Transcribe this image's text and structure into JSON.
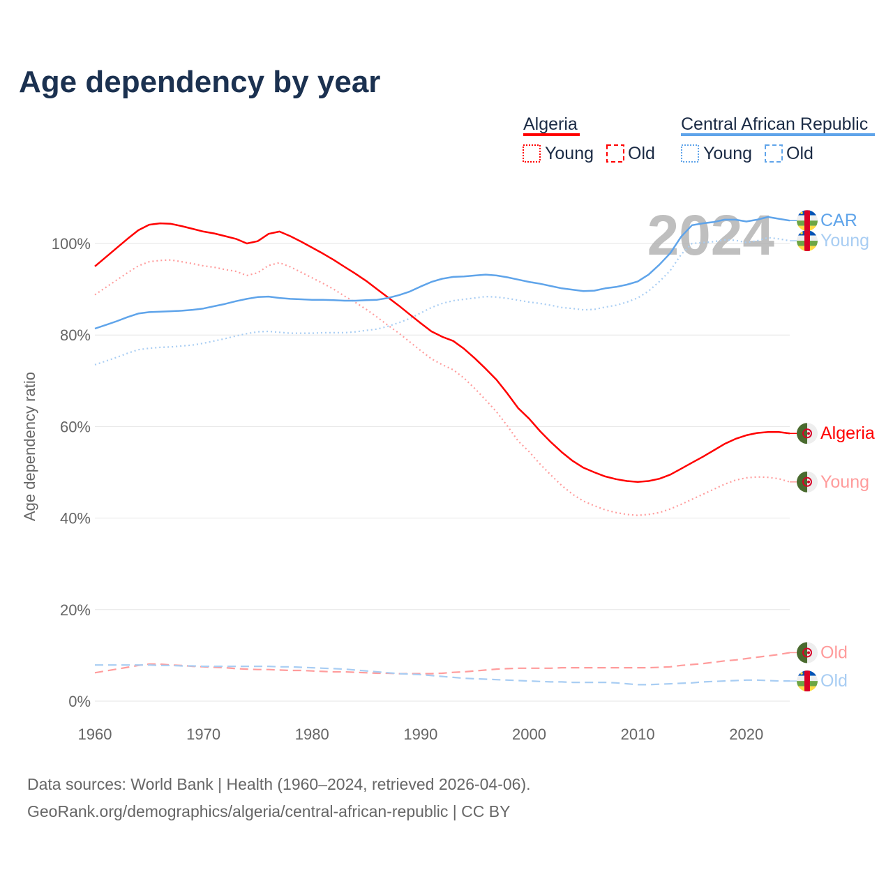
{
  "chart_data": {
    "type": "line",
    "title": "Age dependency by year",
    "xlabel": "",
    "ylabel": "Age dependency ratio",
    "xlim": [
      1960,
      2024
    ],
    "ylim": [
      0,
      110
    ],
    "y_ticks": [
      "0%",
      "20%",
      "40%",
      "60%",
      "80%",
      "100%"
    ],
    "y_tick_values": [
      0,
      20,
      40,
      60,
      80,
      100
    ],
    "x_ticks": [
      "1960",
      "1970",
      "1980",
      "1990",
      "2000",
      "2010",
      "2020"
    ],
    "x_tick_values": [
      1960,
      1970,
      1980,
      1990,
      2000,
      2010,
      2020
    ],
    "grid": true,
    "year_indicator": "2024",
    "x_start": 1960,
    "series": [
      {
        "name": "Algeria",
        "group": "Algeria",
        "kind": "total",
        "end_label": "Algeria",
        "color": "#ff0000",
        "style": "solid",
        "values": [
          95.0,
          97.0,
          99.0,
          101.0,
          102.9,
          104.1,
          104.4,
          104.3,
          103.8,
          103.2,
          102.6,
          102.2,
          101.6,
          101.0,
          100.0,
          100.5,
          102.1,
          102.6,
          101.6,
          100.4,
          99.1,
          97.8,
          96.4,
          94.9,
          93.4,
          91.8,
          90.0,
          88.2,
          86.4,
          84.5,
          82.6,
          80.8,
          79.6,
          78.7,
          77.0,
          74.9,
          72.6,
          70.2,
          67.2,
          64.0,
          61.7,
          59.0,
          56.6,
          54.4,
          52.5,
          51.0,
          50.0,
          49.1,
          48.5,
          48.1,
          47.9,
          48.1,
          48.6,
          49.5,
          50.8,
          52.1,
          53.4,
          54.8,
          56.2,
          57.3,
          58.1,
          58.6,
          58.8,
          58.8,
          58.5
        ]
      },
      {
        "name": "Algeria Young",
        "group": "Algeria",
        "kind": "young",
        "end_label": "Young",
        "color": "#ff9c9c",
        "style": "dotted",
        "values": [
          88.8,
          90.4,
          92.0,
          93.6,
          95.1,
          96.0,
          96.3,
          96.4,
          96.0,
          95.6,
          95.1,
          94.8,
          94.3,
          93.9,
          93.0,
          93.6,
          95.2,
          95.8,
          94.9,
          93.7,
          92.5,
          91.3,
          90.0,
          88.5,
          87.1,
          85.6,
          83.9,
          82.1,
          80.4,
          78.5,
          76.6,
          74.8,
          73.5,
          72.4,
          70.6,
          68.3,
          65.8,
          63.2,
          60.1,
          56.8,
          54.5,
          51.8,
          49.4,
          47.1,
          45.2,
          43.7,
          42.7,
          41.8,
          41.2,
          40.8,
          40.6,
          40.8,
          41.2,
          42.0,
          43.0,
          44.1,
          45.2,
          46.3,
          47.4,
          48.3,
          48.8,
          49.0,
          48.9,
          48.6,
          47.9
        ]
      },
      {
        "name": "Algeria Old",
        "group": "Algeria",
        "kind": "old",
        "end_label": "Old",
        "color": "#ff9c9c",
        "style": "dashed",
        "values": [
          6.2,
          6.6,
          7.0,
          7.4,
          7.8,
          8.1,
          8.1,
          7.9,
          7.8,
          7.6,
          7.5,
          7.4,
          7.3,
          7.1,
          7.0,
          6.9,
          6.9,
          6.8,
          6.7,
          6.7,
          6.6,
          6.5,
          6.4,
          6.4,
          6.3,
          6.2,
          6.1,
          6.1,
          6.0,
          6.0,
          6.0,
          6.0,
          6.1,
          6.3,
          6.4,
          6.6,
          6.8,
          7.0,
          7.1,
          7.2,
          7.2,
          7.2,
          7.2,
          7.3,
          7.3,
          7.3,
          7.3,
          7.3,
          7.3,
          7.3,
          7.3,
          7.3,
          7.4,
          7.5,
          7.8,
          8.0,
          8.2,
          8.5,
          8.8,
          9.0,
          9.3,
          9.6,
          9.9,
          10.2,
          10.6
        ]
      },
      {
        "name": "Central African Republic",
        "group": "Central African Republic",
        "kind": "total",
        "end_label": "CAR",
        "color": "#5fa4ea",
        "style": "solid",
        "values": [
          81.4,
          82.2,
          83.0,
          83.9,
          84.7,
          85.0,
          85.1,
          85.2,
          85.3,
          85.5,
          85.8,
          86.3,
          86.8,
          87.4,
          87.9,
          88.3,
          88.4,
          88.1,
          87.9,
          87.8,
          87.7,
          87.7,
          87.6,
          87.5,
          87.5,
          87.6,
          87.7,
          88.1,
          88.7,
          89.5,
          90.6,
          91.6,
          92.3,
          92.7,
          92.8,
          93.0,
          93.2,
          93.0,
          92.6,
          92.1,
          91.6,
          91.2,
          90.7,
          90.2,
          89.9,
          89.6,
          89.7,
          90.2,
          90.5,
          91.0,
          91.7,
          93.2,
          95.4,
          97.9,
          101.5,
          104.0,
          104.4,
          104.7,
          105.2,
          105.2,
          104.8,
          105.2,
          105.8,
          105.4,
          105.0
        ]
      },
      {
        "name": "Central African Republic Young",
        "group": "Central African Republic",
        "kind": "young",
        "end_label": "Young",
        "color": "#a8cdf3",
        "style": "dotted",
        "values": [
          73.5,
          74.3,
          75.1,
          76.0,
          76.8,
          77.1,
          77.3,
          77.4,
          77.6,
          77.8,
          78.2,
          78.7,
          79.2,
          79.8,
          80.3,
          80.7,
          80.8,
          80.6,
          80.4,
          80.4,
          80.4,
          80.5,
          80.5,
          80.5,
          80.7,
          81.0,
          81.3,
          81.9,
          82.7,
          83.6,
          84.8,
          86.0,
          86.9,
          87.5,
          87.8,
          88.1,
          88.4,
          88.3,
          88.0,
          87.6,
          87.2,
          86.9,
          86.5,
          86.0,
          85.8,
          85.5,
          85.6,
          86.1,
          86.5,
          87.2,
          88.1,
          89.6,
          91.7,
          94.1,
          97.6,
          100.0,
          100.2,
          100.4,
          100.8,
          100.7,
          100.2,
          100.6,
          101.3,
          101.0,
          100.6
        ]
      },
      {
        "name": "Central African Republic Old",
        "group": "Central African Republic",
        "kind": "old",
        "end_label": "Old",
        "color": "#a8cdf3",
        "style": "dashed",
        "values": [
          7.9,
          7.9,
          7.9,
          7.9,
          7.9,
          7.9,
          7.8,
          7.8,
          7.7,
          7.7,
          7.6,
          7.6,
          7.6,
          7.6,
          7.6,
          7.6,
          7.6,
          7.5,
          7.5,
          7.4,
          7.3,
          7.2,
          7.1,
          7.0,
          6.8,
          6.6,
          6.4,
          6.2,
          6.0,
          5.9,
          5.8,
          5.6,
          5.4,
          5.2,
          5.0,
          4.9,
          4.8,
          4.7,
          4.6,
          4.5,
          4.4,
          4.3,
          4.2,
          4.2,
          4.1,
          4.1,
          4.1,
          4.1,
          4.0,
          3.8,
          3.6,
          3.6,
          3.7,
          3.8,
          3.9,
          4.0,
          4.2,
          4.3,
          4.4,
          4.5,
          4.6,
          4.6,
          4.5,
          4.4,
          4.4
        ]
      }
    ],
    "legend": {
      "placement": "top-right",
      "groups": [
        {
          "name": "Algeria",
          "color": "#ff0000",
          "young_label": "Young",
          "old_label": "Old"
        },
        {
          "name": "Central African Republic",
          "color": "#5fa4ea",
          "young_label": "Young",
          "old_label": "Old"
        }
      ]
    }
  },
  "footer": {
    "source": "Data sources: World Bank | Health (1960–2024, retrieved 2026-04-06).",
    "credit": "GeoRank.org/demographics/algeria/central-african-republic | CC BY"
  }
}
